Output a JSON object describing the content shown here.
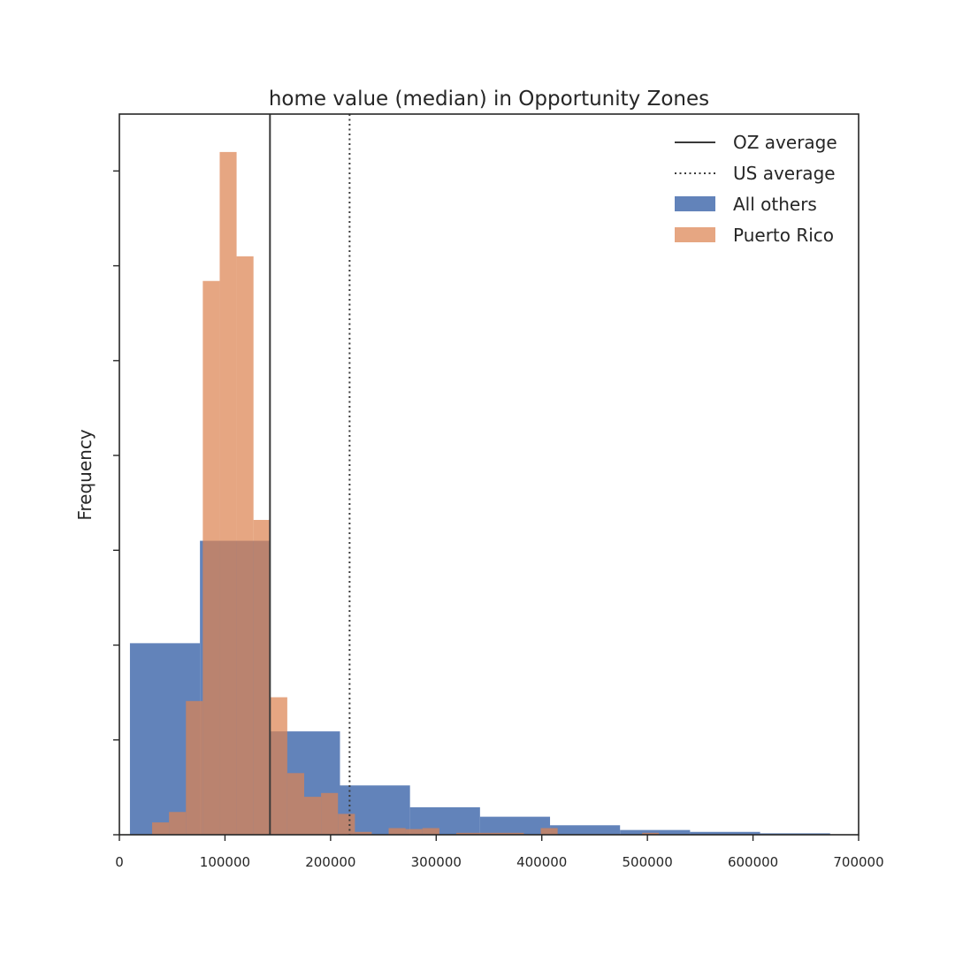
{
  "chart_data": {
    "type": "bar",
    "title": "home value (median) in Opportunity Zones",
    "xlabel": "",
    "ylabel": "Frequency",
    "xlim": [
      0,
      700000
    ],
    "ylim": [
      0,
      76
    ],
    "x_ticks": [
      0,
      100000,
      200000,
      300000,
      400000,
      500000,
      600000,
      700000
    ],
    "y_ticks": [
      0,
      10,
      20,
      30,
      40,
      50,
      60,
      70
    ],
    "y_tick_labels_shown": false,
    "grid": false,
    "legend_position": "top-right",
    "series": [
      {
        "name": "All others",
        "color": "#4c72b0",
        "opacity": 0.88,
        "bin_edges": [
          10000,
          76300,
          142600,
          208900,
          275200,
          341500,
          407800,
          474100,
          540400,
          606700,
          673000
        ],
        "values": [
          20.2,
          31.0,
          10.9,
          5.2,
          2.9,
          1.9,
          1.0,
          0.5,
          0.3,
          0.15
        ]
      },
      {
        "name": "Puerto Rico",
        "color": "#dd8452",
        "opacity": 0.72,
        "bin_edges": [
          31000,
          47000,
          63000,
          79000,
          95000,
          111000,
          127000,
          143000,
          159000,
          175000,
          191000,
          207000,
          223000,
          239000,
          255000,
          271000,
          287000,
          303000,
          319000,
          335000,
          351000,
          367000,
          383000,
          399000,
          415000,
          431000,
          447000,
          463000,
          479000,
          495000,
          511000
        ],
        "values": [
          1.3,
          2.4,
          14.1,
          58.4,
          72.0,
          61.0,
          33.2,
          14.5,
          6.5,
          4.0,
          4.4,
          2.2,
          0.3,
          0.0,
          0.7,
          0.6,
          0.7,
          0.0,
          0.2,
          0.2,
          0.2,
          0.2,
          0.0,
          0.7,
          0.0,
          0.0,
          0.0,
          0.0,
          0.0,
          0.2
        ]
      }
    ],
    "reference_lines": [
      {
        "name": "OZ average",
        "x": 142600,
        "style": "solid",
        "color": "#3a3a3a"
      },
      {
        "name": "US average",
        "x": 218000,
        "style": "dotted",
        "color": "#3a3a3a"
      }
    ]
  }
}
